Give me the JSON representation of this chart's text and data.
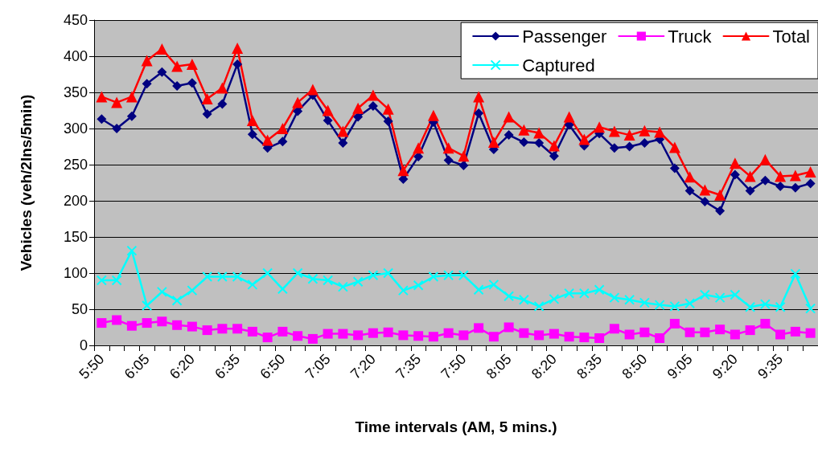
{
  "chart_data": {
    "type": "line",
    "xlabel": "Time intervals (AM, 5 mins.)",
    "ylabel": "Vehicles (veh/2lns/5min)",
    "categories": [
      "5:50",
      null,
      null,
      "6:05",
      null,
      null,
      "6:20",
      null,
      null,
      "6:35",
      null,
      null,
      "6:50",
      null,
      null,
      "7:05",
      null,
      null,
      "7:20",
      null,
      null,
      "7:35",
      null,
      null,
      "7:50",
      null,
      null,
      "8:05",
      null,
      null,
      "8:20",
      null,
      null,
      "8:35",
      null,
      null,
      "8:50",
      null,
      null,
      "9:05",
      null,
      null,
      "9:20",
      null,
      null,
      "9:35",
      null,
      null
    ],
    "series": [
      {
        "name": "Passenger",
        "color": "#000080",
        "marker": "diamond",
        "values": [
          313,
          300,
          317,
          362,
          378,
          359,
          363,
          320,
          334,
          389,
          292,
          273,
          282,
          324,
          346,
          311,
          280,
          316,
          331,
          310,
          230,
          261,
          309,
          256,
          249,
          321,
          271,
          291,
          281,
          280,
          262,
          305,
          276,
          293,
          273,
          275,
          280,
          285,
          245,
          214,
          199,
          186,
          236,
          214,
          228,
          220,
          218,
          224
        ]
      },
      {
        "name": "Truck",
        "color": "#ff00ff",
        "marker": "square",
        "values": [
          31,
          35,
          27,
          31,
          33,
          28,
          26,
          21,
          23,
          23,
          19,
          11,
          19,
          13,
          9,
          16,
          16,
          14,
          17,
          18,
          14,
          13,
          12,
          17,
          14,
          24,
          12,
          25,
          17,
          14,
          16,
          12,
          11,
          10,
          23,
          15,
          18,
          10,
          30,
          18,
          18,
          22,
          15,
          21,
          30,
          15,
          19,
          17
        ]
      },
      {
        "name": "Total",
        "color": "#ff0000",
        "marker": "triangle",
        "values": [
          344,
          336,
          344,
          394,
          410,
          386,
          389,
          341,
          356,
          411,
          311,
          284,
          300,
          336,
          354,
          325,
          296,
          328,
          346,
          327,
          242,
          273,
          318,
          273,
          262,
          344,
          281,
          316,
          298,
          294,
          276,
          316,
          285,
          302,
          296,
          291,
          297,
          295,
          274,
          233,
          215,
          208,
          252,
          234,
          257,
          234,
          235,
          240
        ]
      },
      {
        "name": "Captured",
        "color": "#00ffff",
        "marker": "cross",
        "values": [
          90,
          90,
          131,
          55,
          74,
          62,
          76,
          95,
          95,
          95,
          84,
          100,
          78,
          100,
          92,
          90,
          81,
          88,
          97,
          100,
          76,
          83,
          95,
          97,
          97,
          77,
          84,
          68,
          63,
          54,
          64,
          72,
          72,
          77,
          66,
          63,
          59,
          56,
          54,
          58,
          70,
          66,
          70,
          53,
          57,
          53,
          99,
          51
        ]
      }
    ],
    "ylim": [
      0,
      450
    ],
    "yticks": [
      0,
      50,
      100,
      150,
      200,
      250,
      300,
      350,
      400,
      450
    ],
    "grid": "y",
    "legend": "top right"
  }
}
